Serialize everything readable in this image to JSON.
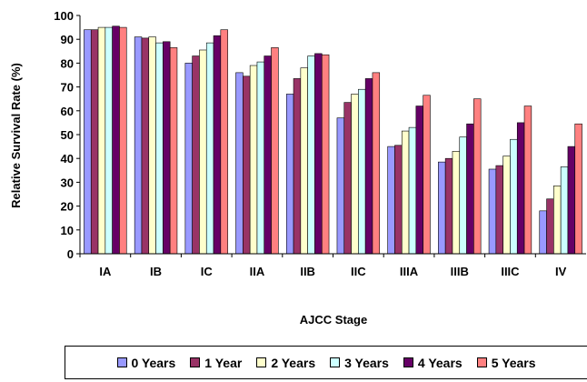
{
  "chart_data": {
    "type": "bar",
    "xlabel": "AJCC Stage",
    "ylabel": "Relative Survival Rate (%)",
    "ylim": [
      0,
      100
    ],
    "yticks": [
      0,
      10,
      20,
      30,
      40,
      50,
      60,
      70,
      80,
      90,
      100
    ],
    "grid": false,
    "legend": "bottom",
    "categories": [
      "IA",
      "IB",
      "IC",
      "IIA",
      "IIB",
      "IIC",
      "IIIA",
      "IIIB",
      "IIIC",
      "IV"
    ],
    "series": [
      {
        "name": "0 Years",
        "color": "#9999ff",
        "values": [
          94,
          91,
          80,
          76,
          67,
          57,
          45,
          38.5,
          35.5,
          18
        ]
      },
      {
        "name": "1 Year",
        "color": "#993366",
        "values": [
          94,
          90.5,
          83,
          74.5,
          73.5,
          63.5,
          45.5,
          40,
          37,
          23
        ]
      },
      {
        "name": "2 Years",
        "color": "#ffffcc",
        "values": [
          95,
          91,
          85.5,
          79,
          78,
          67,
          51.5,
          43,
          41,
          28.5
        ]
      },
      {
        "name": "3 Years",
        "color": "#ccffff",
        "values": [
          95,
          88.5,
          88.5,
          80.5,
          83,
          69,
          53,
          49,
          48,
          36.5
        ]
      },
      {
        "name": "4 Years",
        "color": "#660066",
        "values": [
          95.5,
          89,
          91.5,
          83,
          84,
          73.5,
          62,
          54.5,
          55,
          45
        ]
      },
      {
        "name": "5 Years",
        "color": "#ff8080",
        "values": [
          95,
          86.5,
          94,
          86.5,
          83.5,
          76,
          66.5,
          65,
          62,
          54.5
        ]
      }
    ]
  }
}
